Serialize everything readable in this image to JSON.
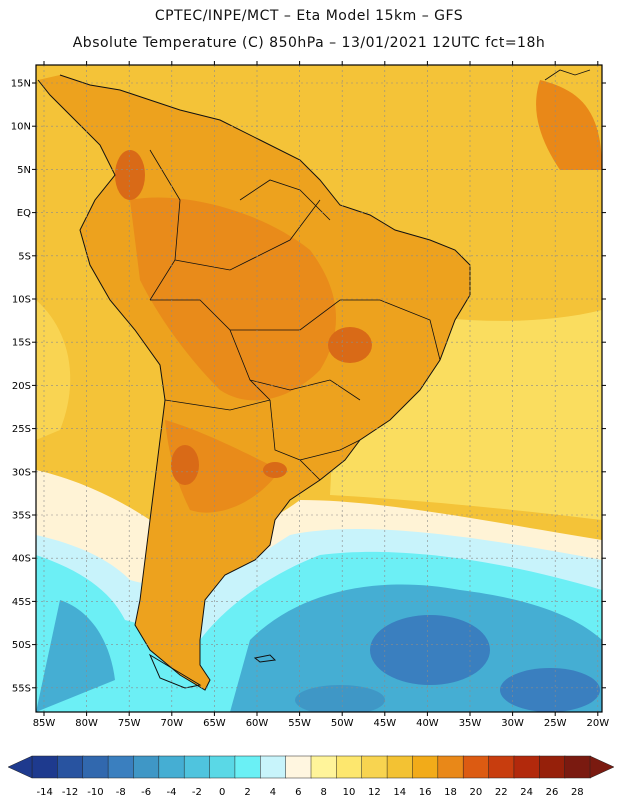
{
  "header": {
    "line1": "CPTEC/INPE/MCT –  Eta Model 15km – GFS",
    "line2": "Absolute Temperature (C) 850hPa – 13/01/2021 12UTC fct=18h"
  },
  "map": {
    "lat_labels": [
      "15N",
      "10N",
      "5N",
      "EQ",
      "5S",
      "10S",
      "15S",
      "20S",
      "25S",
      "30S",
      "35S",
      "40S",
      "45S",
      "50S",
      "55S"
    ],
    "lon_labels": [
      "85W",
      "80W",
      "75W",
      "70W",
      "65W",
      "60W",
      "55W",
      "50W",
      "45W",
      "40W",
      "35W",
      "30W",
      "25W",
      "20W"
    ]
  },
  "colorbar": {
    "labels": [
      "-14",
      "-12",
      "-10",
      "-8",
      "-6",
      "-4",
      "-2",
      "0",
      "2",
      "4",
      "6",
      "8",
      "10",
      "12",
      "14",
      "16",
      "18",
      "20",
      "22",
      "24",
      "26",
      "28"
    ],
    "colors": [
      "#1e3a8e",
      "#2853a0",
      "#3168ae",
      "#3a7fbf",
      "#3f97c6",
      "#45aed3",
      "#4fc4de",
      "#5ad8e6",
      "#6af0f5",
      "#c8f4fb",
      "#fff6e0",
      "#fff49a",
      "#fde76e",
      "#f8d450",
      "#f3c233",
      "#f2ab19",
      "#e98818",
      "#dc5b12",
      "#c83d0e",
      "#b2290c",
      "#96200a",
      "#7a1a10"
    ]
  },
  "colors": {
    "land_warm": "#eda21e",
    "land_hot": "#e8871a",
    "land_hotter": "#d96a17",
    "ocean_warm": "#f4c338",
    "ocean_mild": "#fbe064",
    "cool": "#fff3d6",
    "cold": "#c8f3fb",
    "colder": "#6ceff5",
    "coldest": "#45aed3",
    "deep": "#3a7fbf"
  }
}
